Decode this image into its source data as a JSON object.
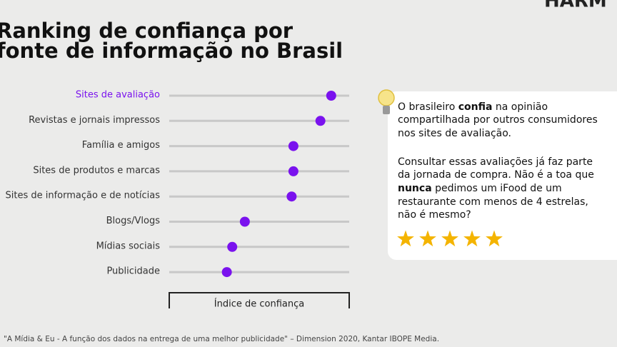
{
  "chart_data": {
    "type": "dot",
    "title": [
      "Ranking de confiança por",
      "fonte de informação no Brasil"
    ],
    "brand": "HARM",
    "categories": [
      "Sites de avaliação",
      "Revistas e jornais impressos",
      "Família e amigos",
      "Sites de produtos e marcas",
      "Sites de informação e de notícias",
      "Blogs/Vlogs",
      "Mídias sociais",
      "Publicidade"
    ],
    "values": [
      90,
      84,
      69,
      69,
      68,
      42,
      35,
      32
    ],
    "xlim": [
      0,
      100
    ],
    "color": "#7a12ee",
    "highlight_index": 0,
    "xlabel": "Índice de confiança",
    "annotation": [
      [
        [
          {
            "text": "O brasileiro "
          },
          {
            "text": "confia",
            "bold": true
          },
          {
            "text": " na opinião"
          }
        ],
        [
          {
            "text": "compartilhada por outros consumidores"
          }
        ],
        [
          {
            "text": "nos sites de avaliação."
          }
        ]
      ],
      [
        [
          {
            "text": "Consultar essas avaliações já faz parte"
          }
        ],
        [
          {
            "text": "da jornada de compra. Não é a toa que"
          }
        ],
        [
          {
            "text": "nunca",
            "bold": true
          },
          {
            "text": " pedimos um iFood de um"
          }
        ],
        [
          {
            "text": "restaurante com menos de 4 estrelas,"
          }
        ],
        [
          {
            "text": "não é mesmo?"
          }
        ]
      ]
    ],
    "source": "\"A Mídia & Eu - A função dos dados na entrega de uma melhor publicidade\" – Dimension 2020, Kantar IBOPE Media."
  }
}
